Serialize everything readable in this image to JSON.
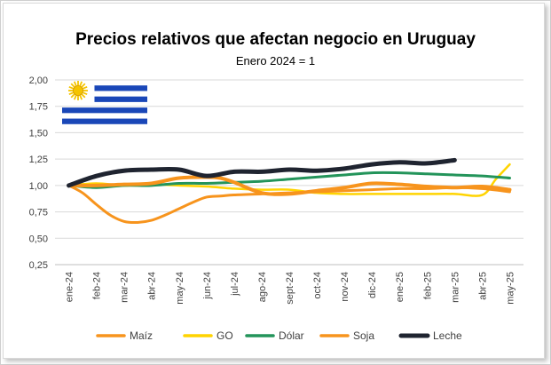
{
  "chart_data": {
    "type": "line",
    "title": "Precios relativos que afectan negocio en Uruguay",
    "subtitle": "Enero 2024 = 1",
    "categories": [
      "ene-24",
      "feb-24",
      "mar-24",
      "abr-24",
      "may-24",
      "jun-24",
      "jul-24",
      "ago-24",
      "sept-24",
      "oct-24",
      "nov-24",
      "dic-24",
      "ene-25",
      "feb-25",
      "mar-25",
      "abr-25",
      "may-25"
    ],
    "ylim": [
      0.25,
      2.0
    ],
    "yticks": [
      "0,25",
      "0,50",
      "0,75",
      "1,00",
      "1,25",
      "1,50",
      "1,75",
      "2,00"
    ],
    "ytick_values": [
      0.25,
      0.5,
      0.75,
      1.0,
      1.25,
      1.5,
      1.75,
      2.0
    ],
    "grid": true,
    "legend_position": "bottom",
    "series": [
      {
        "name": "Maíz",
        "color": "#f7941d",
        "x": [
          0,
          0.5,
          1,
          1.5,
          2,
          2.5,
          3,
          3.5,
          4,
          4.5,
          5,
          5.5,
          6,
          7,
          8,
          9,
          10,
          11,
          12,
          13,
          14,
          15,
          16
        ],
        "values": [
          1.0,
          0.93,
          0.82,
          0.72,
          0.66,
          0.65,
          0.67,
          0.72,
          0.78,
          0.84,
          0.89,
          0.9,
          0.91,
          0.92,
          0.93,
          0.94,
          0.95,
          0.96,
          0.97,
          0.97,
          0.98,
          0.97,
          0.94
        ]
      },
      {
        "name": "GO",
        "color": "#ffd400",
        "x": [
          0,
          1,
          2,
          3,
          4,
          5,
          6,
          7,
          8,
          9,
          10,
          11,
          12,
          13,
          14,
          15,
          15.5,
          16
        ],
        "values": [
          1.0,
          1.02,
          1.0,
          1.01,
          1.0,
          0.99,
          0.97,
          0.96,
          0.96,
          0.93,
          0.92,
          0.92,
          0.92,
          0.92,
          0.92,
          0.91,
          1.06,
          1.2
        ]
      },
      {
        "name": "Dólar",
        "color": "#23945a",
        "x": [
          0,
          1,
          2,
          3,
          4,
          5,
          6,
          7,
          8,
          9,
          10,
          11,
          12,
          13,
          14,
          15,
          16
        ],
        "values": [
          1.0,
          0.98,
          1.0,
          1.0,
          1.02,
          1.02,
          1.03,
          1.04,
          1.06,
          1.08,
          1.1,
          1.12,
          1.12,
          1.11,
          1.1,
          1.09,
          1.07
        ]
      },
      {
        "name": "Soja",
        "color": "#f7941d",
        "x": [
          0,
          1,
          2,
          3,
          4,
          5,
          5.5,
          6,
          7,
          8,
          9,
          10,
          11,
          12,
          13,
          14,
          15,
          16
        ],
        "values": [
          1.0,
          1.0,
          1.01,
          1.02,
          1.07,
          1.08,
          1.07,
          1.03,
          0.93,
          0.92,
          0.95,
          0.98,
          1.02,
          1.01,
          0.99,
          0.98,
          0.99,
          0.96
        ]
      },
      {
        "name": "Leche",
        "color": "#1f2430",
        "x": [
          0,
          1,
          2,
          3,
          4,
          5,
          6,
          7,
          8,
          9,
          10,
          11,
          12,
          13,
          14
        ],
        "values": [
          1.0,
          1.09,
          1.14,
          1.15,
          1.15,
          1.09,
          1.13,
          1.13,
          1.15,
          1.14,
          1.16,
          1.2,
          1.22,
          1.21,
          1.24
        ]
      }
    ]
  },
  "flag": {
    "name": "uruguay-flag-icon",
    "stripe_color": "#1a47b8",
    "sun_color": "#f5c400"
  }
}
